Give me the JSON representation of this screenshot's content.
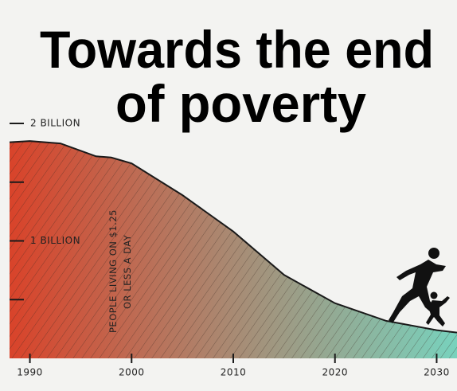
{
  "chart_data": {
    "type": "area",
    "title_lines": [
      "Towards the end",
      "of poverty"
    ],
    "annotation_lines": [
      "PEOPLE LIVING ON $1.25",
      "OR LESS A DAY"
    ],
    "x": [
      1988,
      1990,
      1993,
      1996.5,
      1998,
      2000,
      2005,
      2010,
      2015,
      2020,
      2025,
      2030,
      2032
    ],
    "values": [
      1.84,
      1.85,
      1.83,
      1.72,
      1.71,
      1.66,
      1.39,
      1.08,
      0.71,
      0.47,
      0.32,
      0.24,
      0.22
    ],
    "xlim": [
      1988,
      2032
    ],
    "xticks": [
      1990,
      2000,
      2010,
      2020,
      2030
    ],
    "ylim": [
      0,
      2
    ],
    "yticks": [
      {
        "value": 1,
        "label": "1 BILLION"
      },
      {
        "value": 2,
        "label": "2 BILLION"
      }
    ],
    "minor_yticks": [
      0.5,
      1.5
    ],
    "gradient": [
      "#d9432a",
      "#78d2bd"
    ],
    "hatch": true
  }
}
